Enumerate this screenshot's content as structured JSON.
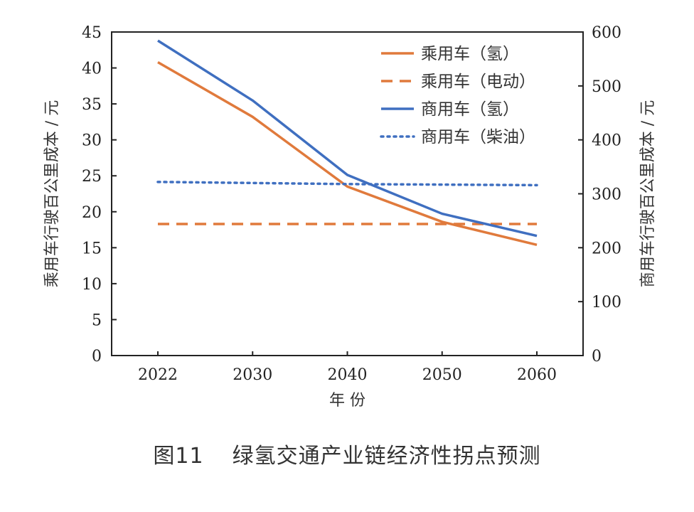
{
  "chart_data": {
    "type": "line",
    "x": [
      2022,
      2030,
      2040,
      2050,
      2060
    ],
    "xlabel": "年 份",
    "ylabel_left": "乘用车行驶百公里成本 / 元",
    "ylabel_right": "商用车行驶百公里成本 / 元",
    "ylim_left": [
      0,
      45
    ],
    "ylim_right": [
      0,
      600
    ],
    "yticks_left": [
      0,
      5,
      10,
      15,
      20,
      25,
      30,
      35,
      40,
      45
    ],
    "yticks_right": [
      0,
      100,
      200,
      300,
      400,
      500,
      600
    ],
    "series": [
      {
        "name": "乘用车（氢）",
        "axis": "left",
        "style": "solid",
        "color": "#E07A3C",
        "values": [
          40.8,
          33.2,
          23.5,
          18.6,
          15.4
        ]
      },
      {
        "name": "乘用车（电动）",
        "axis": "left",
        "style": "dashed",
        "color": "#E07A3C",
        "values": [
          18.3,
          18.3,
          18.3,
          18.3,
          18.3
        ]
      },
      {
        "name": "商用车（氢）",
        "axis": "right",
        "style": "solid",
        "color": "#3F6FC0",
        "values": [
          584,
          473,
          335,
          263,
          222
        ]
      },
      {
        "name": "商用车（柴油）",
        "axis": "right",
        "style": "dotted",
        "color": "#3F6FC0",
        "values": [
          322,
          320,
          318,
          317,
          316
        ]
      }
    ],
    "left_axis_color": "#E07A3C",
    "right_axis_color": "#222222",
    "legend_position": "top-right"
  },
  "caption": {
    "figure_number": "图11",
    "title": "绿氢交通产业链经济性拐点预测"
  }
}
